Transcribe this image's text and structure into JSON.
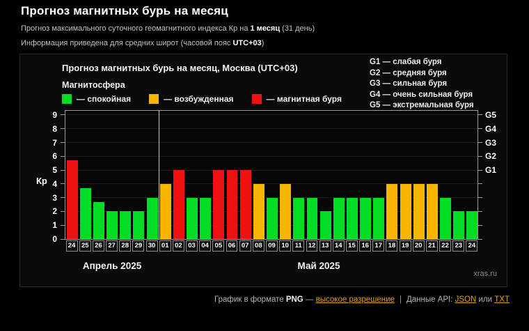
{
  "page": {
    "title": "Прогноз магнитных бурь на месяц",
    "subtitle1_prefix": "Прогноз максимального суточного геомагнитного индекса Кр на ",
    "subtitle1_bold": "1 месяц",
    "subtitle1_suffix": " (31 день)",
    "subtitle2_prefix": "Информация приведена для средних широт (часовой пояс ",
    "subtitle2_bold": "UTC+03",
    "subtitle2_suffix": ")"
  },
  "panel": {
    "chart_title": "Прогноз магнитных бурь на месяц, Москва (UTC+03)",
    "magnetosphere_label": "Магнитосфера",
    "legend": [
      {
        "key": "quiet",
        "label": "— спокойная"
      },
      {
        "key": "excited",
        "label": "— возбужденная"
      },
      {
        "key": "storm",
        "label": "— магнитная буря"
      }
    ],
    "g_legend": [
      "G1 — слабая буря",
      "G2 — средняя буря",
      "G3 — сильная буря",
      "G4 — очень сильная буря",
      "G5 — экстремальная буря"
    ],
    "watermark": "xras.ru"
  },
  "chart_data": {
    "type": "bar",
    "title": "Прогноз магнитных бурь на месяц, Москва (UTC+03)",
    "ylabel": "Кр",
    "ylim": [
      0,
      9.4
    ],
    "yticks": [
      0,
      1,
      2,
      3,
      4,
      5,
      6,
      7,
      8,
      9
    ],
    "right_axis_labels": [
      {
        "value": 5,
        "label": "G1"
      },
      {
        "value": 6,
        "label": "G2"
      },
      {
        "value": 7,
        "label": "G3"
      },
      {
        "value": 8,
        "label": "G4"
      },
      {
        "value": 9,
        "label": "G5"
      }
    ],
    "month_sections": [
      {
        "label": "Апрель 2025",
        "days": 7
      },
      {
        "label": "Май 2025",
        "days": 24
      }
    ],
    "categories": [
      "24",
      "25",
      "26",
      "27",
      "28",
      "29",
      "30",
      "01",
      "02",
      "03",
      "04",
      "05",
      "06",
      "07",
      "08",
      "09",
      "10",
      "11",
      "12",
      "13",
      "14",
      "15",
      "16",
      "17",
      "18",
      "19",
      "20",
      "21",
      "22",
      "23",
      "24"
    ],
    "values": [
      5.7,
      3.7,
      2.7,
      2,
      2,
      2,
      3,
      4,
      5,
      3,
      3,
      5,
      5,
      5,
      4,
      3,
      4,
      3,
      3,
      2,
      3,
      3,
      3,
      3,
      4,
      4,
      4,
      4,
      3,
      2,
      2
    ],
    "statuses": [
      "storm",
      "quiet",
      "quiet",
      "quiet",
      "quiet",
      "quiet",
      "quiet",
      "excited",
      "storm",
      "quiet",
      "quiet",
      "storm",
      "storm",
      "storm",
      "excited",
      "quiet",
      "excited",
      "quiet",
      "quiet",
      "quiet",
      "quiet",
      "quiet",
      "quiet",
      "quiet",
      "excited",
      "excited",
      "excited",
      "excited",
      "quiet",
      "quiet",
      "quiet"
    ],
    "colors": {
      "quiet": "#00dd22",
      "excited": "#f7b500",
      "storm": "#ee1111"
    },
    "grid": true,
    "legend_position": "top-left"
  },
  "footer": {
    "format_prefix": "График в формате ",
    "format_name": "PNG",
    "dash": " — ",
    "hires_link": "высокое разрешение",
    "separator": "|",
    "api_prefix": "Данные API: ",
    "json_link": "JSON",
    "or_text": " или ",
    "txt_link": "TXT"
  }
}
